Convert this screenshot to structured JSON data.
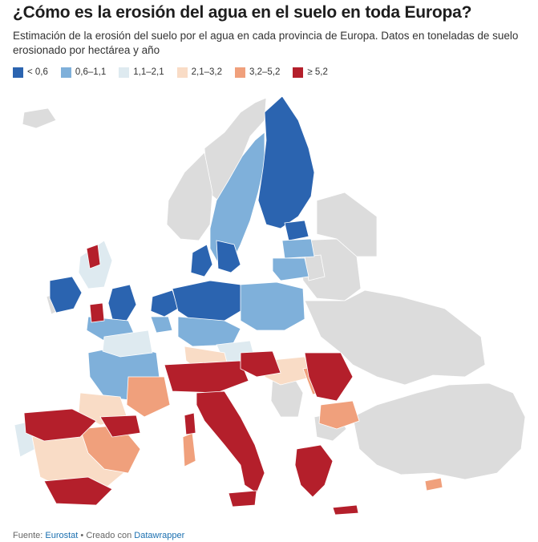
{
  "title": "¿Cómo es la erosión del agua en el suelo en toda Europa?",
  "subtitle": "Estimación de la erosión del suelo por el agua en cada provincia de Europa. Datos en toneladas de suelo erosionado por hectárea y año",
  "legend": [
    {
      "label": "< 0,6",
      "color": "#2b64b0"
    },
    {
      "label": "0,6–1,1",
      "color": "#7fb0da"
    },
    {
      "label": "1,1–2,1",
      "color": "#deeaf0"
    },
    {
      "label": "2,1–3,2",
      "color": "#f9dcc6"
    },
    {
      "label": "3,2–5,2",
      "color": "#f0a07c"
    },
    {
      "label": "≥ 5,2",
      "color": "#b41f2b"
    }
  ],
  "colors": {
    "nodata": "#dcdcdc",
    "border": "#ffffff"
  },
  "footer": {
    "source_prefix": "Fuente:",
    "source_link": "Eurostat",
    "separator": "•",
    "created_prefix": "Creado con",
    "created_link": "Datawrapper"
  }
}
